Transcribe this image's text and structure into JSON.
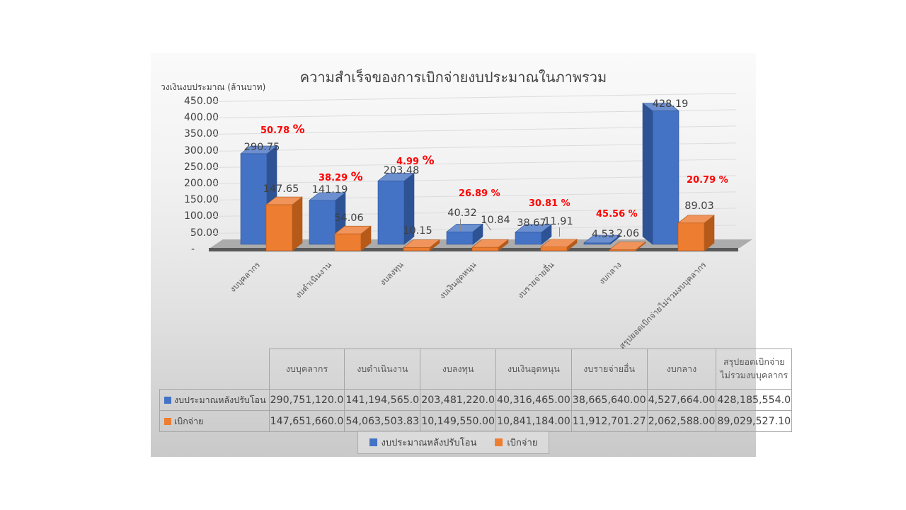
{
  "chart_data": {
    "type": "bar",
    "title": "ความสำเร็จของการเบิกจ่ายงบประมาณในภาพรวม",
    "y_axis_title": "วงเงินงบประมาณ (ล้านบาท)",
    "xlabel": "",
    "ylabel": "วงเงินงบประมาณ (ล้านบาท)",
    "ylim": [
      0,
      450
    ],
    "grid": true,
    "legend_position": "bottom",
    "y_ticks": [
      "450.00",
      "400.00",
      "350.00",
      "300.00",
      "250.00",
      "200.00",
      "150.00",
      "100.00",
      "50.00",
      "-"
    ],
    "categories": [
      "งบบุคลากร",
      "งบดำเนินงาน",
      "งบลงทุน",
      "งบเงินอุดหนุน",
      "งบรายจ่ายอื่น",
      "งบกลาง",
      "สรุปยอดเบิกจ่ายไม่รวมงบบุคลากร"
    ],
    "series": [
      {
        "name": "งบประมาณหลังปรับโอน",
        "color": "#4472C4",
        "values": [
          290.75,
          141.19,
          203.48,
          40.32,
          38.67,
          4.53,
          428.19
        ],
        "labels": [
          "290.75",
          "141.19",
          "203.48",
          "40.32",
          "38.67",
          "4.53",
          "428.19"
        ]
      },
      {
        "name": "เบิกจ่าย",
        "color": "#ED7D31",
        "values": [
          147.65,
          54.06,
          10.15,
          10.84,
          11.91,
          2.06,
          89.03
        ],
        "labels": [
          "147.65",
          "54.06",
          "10.15",
          "10.84",
          "11.91",
          "2.06",
          "89.03"
        ]
      }
    ],
    "percent_labels": [
      "50.78 %",
      "38.29 %",
      "4.99 %",
      "26.89 %",
      "30.81 %",
      "45.56 %",
      "20.79 %"
    ],
    "percent_color": "#FF0000"
  },
  "colors": {
    "series1_front": "#4472C4",
    "series1_side": "#2E5395",
    "series1_top": "#6C8FD0",
    "series2_front": "#ED7D31",
    "series2_side": "#B65A1A",
    "series2_top": "#F0945B",
    "floor": "#acacac",
    "axis_line": "#595959"
  },
  "table": {
    "headers": [
      "งบบุคลากร",
      "งบดำเนินงาน",
      "งบลงทุน",
      "งบเงินอุดหนุน",
      "งบรายจ่ายอื่น",
      "งบกลาง",
      "สรุปยอดเบิกจ่ายไม่รวมงบบุคลากร"
    ],
    "rows": [
      {
        "label": "งบประมาณหลังปรับโอน",
        "key_color": "#4472C4",
        "values": [
          "290,751,120.0",
          "141,194,565.0",
          "203,481,220.0",
          "40,316,465.00",
          "38,665,640.00",
          "4,527,664.00",
          "428,185,554.0"
        ]
      },
      {
        "label": "เบิกจ่าย",
        "key_color": "#ED7D31",
        "values": [
          "147,651,660.0",
          "54,063,503.83",
          "10,149,550.00",
          "10,841,184.00",
          "11,912,701.27",
          "2,062,588.00",
          "89,029,527.10"
        ]
      }
    ]
  },
  "legend": {
    "items": [
      {
        "label": "งบประมาณหลังปรับโอน",
        "color": "#4472C4"
      },
      {
        "label": "เบิกจ่าย",
        "color": "#ED7D31"
      }
    ]
  }
}
